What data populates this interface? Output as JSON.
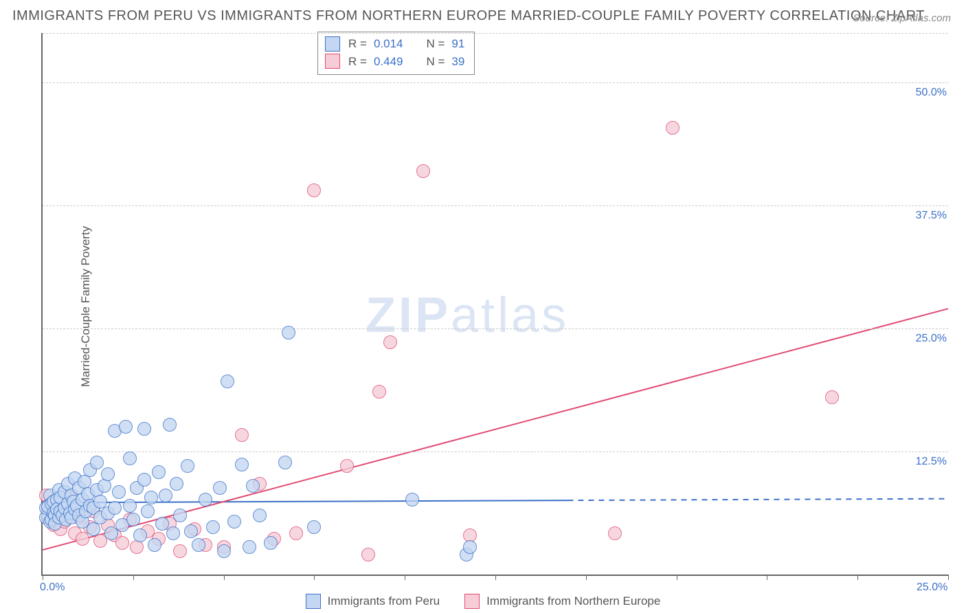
{
  "title": "IMMIGRANTS FROM PERU VS IMMIGRANTS FROM NORTHERN EUROPE MARRIED-COUPLE FAMILY POVERTY CORRELATION CHART",
  "source_prefix": "Source: ",
  "source": "ZipAtlas.com",
  "ylabel": "Married-Couple Family Poverty",
  "watermark_zip": "ZIP",
  "watermark_atlas": "atlas",
  "chart": {
    "type": "scatter",
    "background_color": "#ffffff",
    "grid_color": "#cccccc",
    "axis_color": "#666666",
    "text_color": "#555555",
    "value_color": "#3b70c9",
    "xlim": [
      0,
      25
    ],
    "ylim": [
      0,
      55
    ],
    "xticks": [
      0,
      2.5,
      5,
      7.5,
      10,
      12.5,
      15,
      17.5,
      20,
      22.5,
      25
    ],
    "xtick_labels": {
      "0": "0.0%",
      "25": "25.0%"
    },
    "ygrid": [
      12.5,
      25,
      37.5,
      50,
      55
    ],
    "ytick_labels": {
      "12.5": "12.5%",
      "25": "25.0%",
      "37.5": "37.5%",
      "50": "50.0%"
    },
    "marker_radius": 10,
    "marker_border": 1.3,
    "line_width": 2,
    "series": [
      {
        "name": "Immigrants from Peru",
        "fill": "#c3d7f2",
        "stroke": "#3b70c9",
        "line_solid_xmax": 14.5,
        "trend": {
          "x1": 0,
          "y1": 7.3,
          "x2": 25,
          "y2": 7.7
        },
        "R_label": "R = ",
        "R": "0.014",
        "N_label": "N = ",
        "N": "91",
        "points": [
          [
            0.1,
            5.8
          ],
          [
            0.1,
            6.8
          ],
          [
            0.15,
            6.9
          ],
          [
            0.2,
            5.4
          ],
          [
            0.2,
            8.0
          ],
          [
            0.25,
            7.2
          ],
          [
            0.25,
            5.6
          ],
          [
            0.3,
            6.2
          ],
          [
            0.3,
            7.4
          ],
          [
            0.35,
            6.0
          ],
          [
            0.35,
            5.2
          ],
          [
            0.4,
            7.6
          ],
          [
            0.4,
            6.6
          ],
          [
            0.45,
            8.6
          ],
          [
            0.45,
            5.8
          ],
          [
            0.5,
            6.4
          ],
          [
            0.5,
            7.8
          ],
          [
            0.55,
            6.0
          ],
          [
            0.6,
            8.4
          ],
          [
            0.6,
            6.8
          ],
          [
            0.65,
            5.6
          ],
          [
            0.7,
            7.2
          ],
          [
            0.7,
            9.2
          ],
          [
            0.75,
            6.2
          ],
          [
            0.8,
            8.0
          ],
          [
            0.8,
            5.8
          ],
          [
            0.85,
            7.4
          ],
          [
            0.9,
            6.6
          ],
          [
            0.9,
            9.8
          ],
          [
            0.95,
            7.0
          ],
          [
            1.0,
            6.0
          ],
          [
            1.0,
            8.8
          ],
          [
            1.1,
            5.4
          ],
          [
            1.1,
            7.6
          ],
          [
            1.15,
            9.4
          ],
          [
            1.2,
            6.4
          ],
          [
            1.25,
            8.2
          ],
          [
            1.3,
            10.6
          ],
          [
            1.3,
            7.0
          ],
          [
            1.4,
            4.6
          ],
          [
            1.4,
            6.8
          ],
          [
            1.5,
            8.6
          ],
          [
            1.5,
            11.4
          ],
          [
            1.6,
            5.8
          ],
          [
            1.6,
            7.4
          ],
          [
            1.7,
            9.0
          ],
          [
            1.8,
            6.2
          ],
          [
            1.8,
            10.2
          ],
          [
            1.9,
            4.2
          ],
          [
            2.0,
            6.8
          ],
          [
            2.0,
            14.6
          ],
          [
            2.1,
            8.4
          ],
          [
            2.2,
            5.0
          ],
          [
            2.3,
            15.0
          ],
          [
            2.4,
            7.0
          ],
          [
            2.4,
            11.8
          ],
          [
            2.5,
            5.6
          ],
          [
            2.6,
            8.8
          ],
          [
            2.7,
            4.0
          ],
          [
            2.8,
            9.6
          ],
          [
            2.8,
            14.8
          ],
          [
            2.9,
            6.4
          ],
          [
            3.0,
            7.8
          ],
          [
            3.1,
            3.0
          ],
          [
            3.2,
            10.4
          ],
          [
            3.3,
            5.2
          ],
          [
            3.4,
            8.0
          ],
          [
            3.5,
            15.2
          ],
          [
            3.6,
            4.2
          ],
          [
            3.7,
            9.2
          ],
          [
            3.8,
            6.0
          ],
          [
            4.0,
            11.0
          ],
          [
            4.1,
            4.4
          ],
          [
            4.3,
            3.0
          ],
          [
            4.5,
            7.6
          ],
          [
            4.7,
            4.8
          ],
          [
            4.9,
            8.8
          ],
          [
            5.0,
            2.4
          ],
          [
            5.1,
            19.6
          ],
          [
            5.3,
            5.4
          ],
          [
            5.5,
            11.2
          ],
          [
            5.7,
            2.8
          ],
          [
            5.8,
            9.0
          ],
          [
            6.0,
            6.0
          ],
          [
            6.3,
            3.2
          ],
          [
            6.7,
            11.4
          ],
          [
            6.8,
            24.6
          ],
          [
            7.5,
            4.8
          ],
          [
            10.2,
            7.6
          ],
          [
            11.7,
            2.0
          ],
          [
            11.8,
            2.8
          ]
        ]
      },
      {
        "name": "Immigrants from Northern Europe",
        "fill": "#f6cdd7",
        "stroke": "#e14a72",
        "line_solid_xmax": 25,
        "trend": {
          "x1": 0,
          "y1": 2.5,
          "x2": 25,
          "y2": 27.0
        },
        "R_label": "R = ",
        "R": "0.449",
        "N_label": "N = ",
        "N": "39",
        "points": [
          [
            0.1,
            8.0
          ],
          [
            0.15,
            7.0
          ],
          [
            0.3,
            5.0
          ],
          [
            0.4,
            6.2
          ],
          [
            0.5,
            4.6
          ],
          [
            0.6,
            5.4
          ],
          [
            0.8,
            7.8
          ],
          [
            0.9,
            4.2
          ],
          [
            1.0,
            5.8
          ],
          [
            1.1,
            3.6
          ],
          [
            1.3,
            4.8
          ],
          [
            1.4,
            6.4
          ],
          [
            1.6,
            3.4
          ],
          [
            1.8,
            5.0
          ],
          [
            2.0,
            4.0
          ],
          [
            2.2,
            3.2
          ],
          [
            2.4,
            5.6
          ],
          [
            2.6,
            2.8
          ],
          [
            2.9,
            4.4
          ],
          [
            3.2,
            3.6
          ],
          [
            3.5,
            5.2
          ],
          [
            3.8,
            2.4
          ],
          [
            4.2,
            4.6
          ],
          [
            4.5,
            3.0
          ],
          [
            5.0,
            2.8
          ],
          [
            5.5,
            14.2
          ],
          [
            6.0,
            9.2
          ],
          [
            6.4,
            3.6
          ],
          [
            7.0,
            4.2
          ],
          [
            7.5,
            39.0
          ],
          [
            8.4,
            11.0
          ],
          [
            9.0,
            2.0
          ],
          [
            9.3,
            18.6
          ],
          [
            9.6,
            23.6
          ],
          [
            10.5,
            41.0
          ],
          [
            11.8,
            4.0
          ],
          [
            15.8,
            4.2
          ],
          [
            17.4,
            45.4
          ],
          [
            21.8,
            18.0
          ]
        ]
      }
    ]
  },
  "legend": {
    "series1_label": "Immigrants from Peru",
    "series2_label": "Immigrants from Northern Europe"
  }
}
